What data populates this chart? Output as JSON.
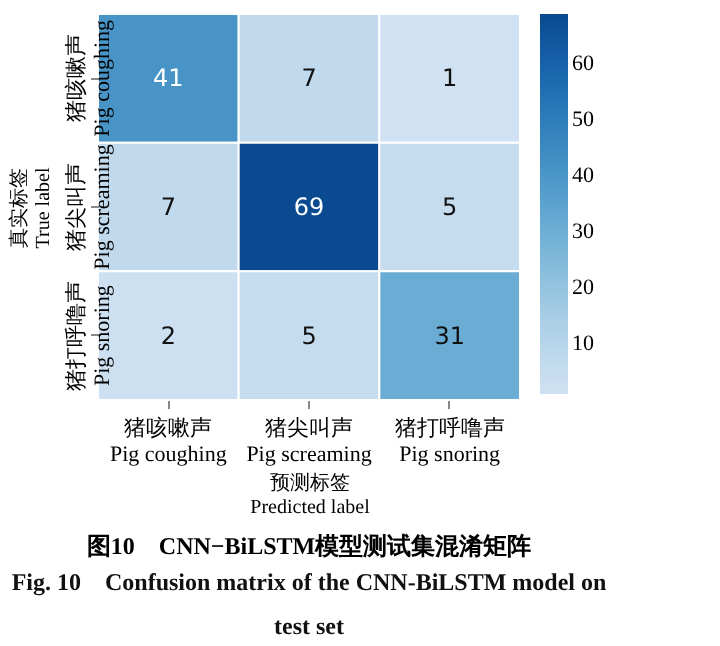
{
  "chart_data": {
    "type": "heatmap",
    "title": "图10　CNN−BiLSTM模型测试集混淆矩阵",
    "subtitle": "Fig. 10　Confusion matrix of the CNN-BiLSTM model on\ntest set",
    "xlabel": "预测标签\nPredicted label",
    "ylabel": "真实标签\nTrue label",
    "categories": [
      "猪咳嗽声\nPig coughing",
      "猪尖叫声\nPig screaming",
      "猪打呼噜声\nPig snoring"
    ],
    "y_categories": [
      "猪咳嗽声\nPig coughing",
      "猪尖叫声\nPig screaming",
      "猪打呼噜声\nPig snoring"
    ],
    "cells": [
      [
        41,
        7,
        1
      ],
      [
        7,
        69,
        5
      ],
      [
        2,
        5,
        31
      ]
    ],
    "data_labels": true,
    "clim": [
      1,
      69
    ],
    "cticks": [
      10,
      20,
      30,
      40,
      50,
      60
    ]
  }
}
